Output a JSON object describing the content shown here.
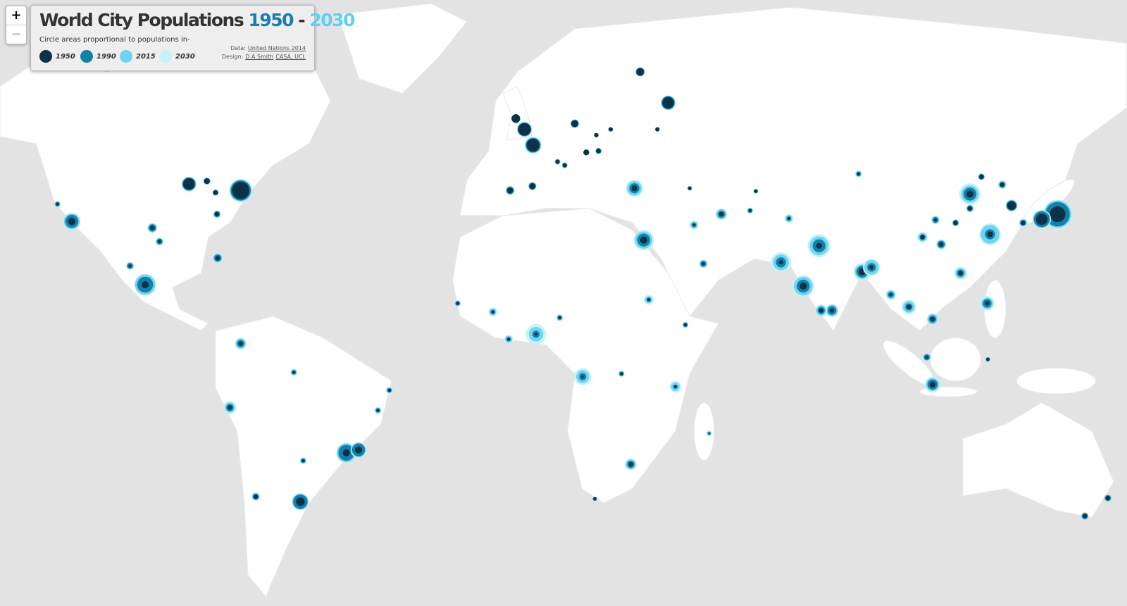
{
  "zoom": {
    "in": "+",
    "out": "−"
  },
  "legend": {
    "title": "World City Populations",
    "title_start": "1950",
    "title_sep": "-",
    "title_end": "2030",
    "subtitle": "Circle areas proportional to populations in-",
    "entries": [
      "1950",
      "1990",
      "2015",
      "2030"
    ],
    "data_label": "Data:",
    "data_source": "United Nations 2014",
    "design_label": "Design:",
    "design_author": "D A Smith",
    "design_org": "CASA, UCL"
  }
}
